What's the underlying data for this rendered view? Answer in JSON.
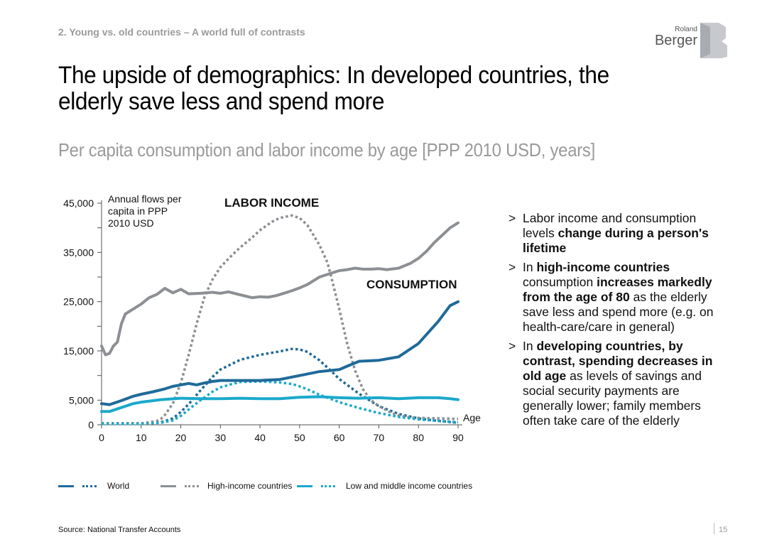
{
  "header": {
    "section": "2. Young vs. old countries – A world full of contrasts",
    "title": "The upside of demographics: In developed countries, the elderly save less and spend more",
    "subtitle": "Per capita consumption and labor income by age [PPP 2010 USD, years]"
  },
  "logo": {
    "line1": "Roland",
    "line2": "Berger"
  },
  "bullets": [
    {
      "parts": [
        {
          "t": "Labor income and consumption levels ",
          "b": false
        },
        {
          "t": "change during a person's lifetime",
          "b": true
        }
      ]
    },
    {
      "parts": [
        {
          "t": "In ",
          "b": false
        },
        {
          "t": "high-income countries",
          "b": true
        },
        {
          "t": " consumption ",
          "b": false
        },
        {
          "t": "increases markedly from the age of 80",
          "b": true
        },
        {
          "t": " as the elderly save less and spend more (e.g. on health-care/care in general)",
          "b": false
        }
      ]
    },
    {
      "parts": [
        {
          "t": "In ",
          "b": false
        },
        {
          "t": "developing countries, by contrast, spending decreases in old age",
          "b": true
        },
        {
          "t": " as levels of savings and social security payments are generally lower; family members often take care of the elderly",
          "b": false
        }
      ]
    }
  ],
  "bullet_marker": ">",
  "legend": {
    "world": "World",
    "high": "High-income countries",
    "low": "Low and middle income countries"
  },
  "footer": {
    "source": "Source: National Transfer Accounts",
    "page": "15"
  },
  "colors": {
    "world": "#1f6a99",
    "high": "#8c8f93",
    "low": "#1ba9cb",
    "grey_text": "#9a9a9a"
  },
  "chart_data": {
    "type": "line",
    "xlabel": "Age",
    "ylabel": "Annual flows per capita in PPP 2010 USD",
    "xlim": [
      0,
      90
    ],
    "ylim": [
      0,
      45000
    ],
    "x_ticks": [
      0,
      10,
      20,
      30,
      40,
      50,
      60,
      70,
      80,
      90
    ],
    "y_ticks": [
      0,
      5000,
      15000,
      25000,
      35000,
      45000
    ],
    "y_tick_labels": [
      "0",
      "5,000",
      "15,000",
      "25,000",
      "35,000",
      "45,000"
    ],
    "annotations": {
      "labor_income": "LABOR INCOME",
      "consumption": "CONSUMPTION"
    },
    "series": [
      {
        "name": "World – consumption",
        "group": "world",
        "style": "solid",
        "x": [
          0,
          2,
          5,
          8,
          10,
          13,
          16,
          18,
          20,
          22,
          24,
          26,
          28,
          30,
          35,
          40,
          45,
          50,
          55,
          60,
          62,
          65,
          70,
          75,
          80,
          85,
          88,
          90
        ],
        "y": [
          4300,
          4100,
          4900,
          5800,
          6200,
          6700,
          7300,
          7800,
          8100,
          8400,
          8100,
          8500,
          8800,
          9000,
          9000,
          9000,
          9200,
          10000,
          10800,
          11200,
          11900,
          12900,
          13100,
          13800,
          16500,
          21000,
          24200,
          25000
        ]
      },
      {
        "name": "World – labor income",
        "group": "world",
        "style": "dotted",
        "x": [
          0,
          10,
          15,
          18,
          20,
          22,
          25,
          28,
          30,
          33,
          35,
          40,
          45,
          48,
          50,
          52,
          55,
          58,
          60,
          65,
          70,
          75,
          80,
          85,
          90
        ],
        "y": [
          300,
          300,
          500,
          1300,
          2600,
          4200,
          7000,
          9700,
          11200,
          12400,
          13200,
          14200,
          14900,
          15400,
          15300,
          14800,
          13100,
          10900,
          9300,
          6300,
          3800,
          2200,
          1300,
          800,
          400
        ]
      },
      {
        "name": "High-income – consumption",
        "group": "high",
        "style": "solid",
        "x": [
          0,
          1,
          2,
          3,
          4,
          5,
          6,
          8,
          10,
          12,
          14,
          16,
          18,
          20,
          22,
          25,
          28,
          30,
          32,
          35,
          38,
          40,
          42,
          44,
          46,
          48,
          50,
          52,
          55,
          58,
          60,
          62,
          64,
          66,
          68,
          70,
          72,
          75,
          78,
          80,
          82,
          84,
          86,
          88,
          90
        ],
        "y": [
          16000,
          14200,
          14500,
          16000,
          16800,
          20500,
          22500,
          23500,
          24500,
          25800,
          26500,
          27700,
          26800,
          27500,
          26600,
          26700,
          26900,
          26700,
          27000,
          26400,
          25800,
          26000,
          25900,
          26200,
          26700,
          27200,
          27800,
          28500,
          30000,
          30800,
          31300,
          31500,
          31800,
          31600,
          31600,
          31700,
          31500,
          31800,
          32800,
          33800,
          35200,
          37000,
          38500,
          40000,
          41000
        ]
      },
      {
        "name": "High-income – labor income",
        "group": "high",
        "style": "dotted",
        "x": [
          0,
          10,
          12,
          14,
          15,
          16,
          18,
          20,
          22,
          24,
          26,
          28,
          30,
          33,
          35,
          38,
          40,
          43,
          45,
          48,
          50,
          52,
          55,
          57,
          58,
          60,
          62,
          64,
          66,
          68,
          70,
          73,
          75,
          78,
          80,
          85,
          90
        ],
        "y": [
          300,
          300,
          500,
          800,
          1200,
          2000,
          4300,
          8500,
          14200,
          20500,
          26000,
          29500,
          32000,
          34500,
          36000,
          38000,
          39500,
          41200,
          42000,
          42500,
          42000,
          40500,
          36500,
          33000,
          30000,
          23500,
          16500,
          11000,
          7200,
          5000,
          3800,
          2500,
          1900,
          1500,
          1400,
          1300,
          1200
        ]
      },
      {
        "name": "Low and middle income – consumption",
        "group": "low",
        "style": "solid",
        "x": [
          0,
          2,
          5,
          8,
          10,
          15,
          20,
          25,
          30,
          35,
          40,
          45,
          50,
          55,
          60,
          65,
          70,
          75,
          80,
          85,
          88,
          90
        ],
        "y": [
          2700,
          2700,
          3500,
          4300,
          4600,
          5100,
          5400,
          5300,
          5300,
          5400,
          5300,
          5300,
          5600,
          5700,
          5500,
          5400,
          5500,
          5300,
          5500,
          5500,
          5300,
          5100
        ]
      },
      {
        "name": "Low and middle income – labor income",
        "group": "low",
        "style": "dotted",
        "x": [
          0,
          10,
          15,
          18,
          20,
          22,
          25,
          28,
          30,
          33,
          35,
          40,
          45,
          48,
          50,
          52,
          55,
          58,
          60,
          65,
          70,
          75,
          80,
          85,
          90
        ],
        "y": [
          200,
          200,
          400,
          900,
          1800,
          3100,
          5000,
          6700,
          7600,
          8300,
          8700,
          8800,
          8600,
          8300,
          7800,
          7200,
          6100,
          5200,
          4600,
          3400,
          2400,
          1600,
          1100,
          800,
          500
        ]
      }
    ]
  }
}
